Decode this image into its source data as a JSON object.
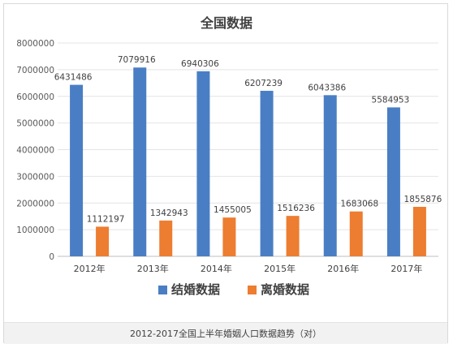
{
  "chart_data": {
    "type": "bar",
    "title": "全国数据",
    "categories": [
      "2012年",
      "2013年",
      "2014年",
      "2015年",
      "2016年",
      "2017年"
    ],
    "series": [
      {
        "name": "结婚数据",
        "color": "#4a7ec4",
        "values": [
          6431486,
          7079916,
          6940306,
          6207239,
          6043386,
          5584953
        ]
      },
      {
        "name": "离婚数据",
        "color": "#ed7d31",
        "values": [
          1112197,
          1342943,
          1455005,
          1516236,
          1683068,
          1855876
        ]
      }
    ],
    "y_ticks": [
      "0",
      "1000000",
      "2000000",
      "3000000",
      "4000000",
      "5000000",
      "6000000",
      "7000000",
      "8000000"
    ],
    "ylim": [
      0,
      8000000
    ],
    "grid": true,
    "legend_position": "bottom",
    "xlabel": "",
    "ylabel": ""
  },
  "caption": "2012-2017全国上半年婚姻人口数据趋势（对）"
}
